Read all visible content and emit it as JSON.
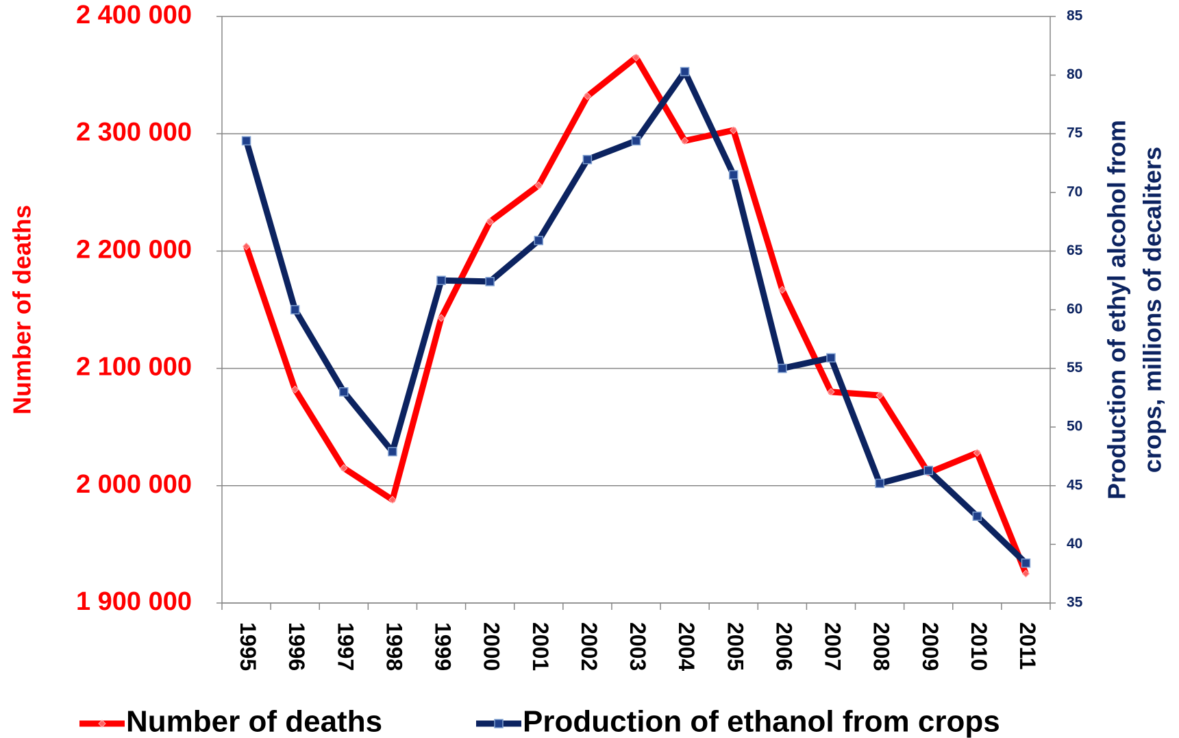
{
  "chart_data": {
    "type": "line",
    "y_label": "Number of deaths",
    "y2_label": [
      "Production of ethyl alcohol from",
      "crops, millions of decaliters"
    ],
    "categories": [
      "1995",
      "1996",
      "1997",
      "1998",
      "1999",
      "2000",
      "2001",
      "2002",
      "2003",
      "2004",
      "2005",
      "2006",
      "2007",
      "2008",
      "2009",
      "2010",
      "2011"
    ],
    "series": [
      {
        "name": "Number of deaths",
        "color": "#ff0000",
        "marker": "diamond",
        "values": [
          2204000,
          2082000,
          2015000,
          1988000,
          2143000,
          2225000,
          2256000,
          2332000,
          2365000,
          2294000,
          2303000,
          2167000,
          2080000,
          2077000,
          2011000,
          2028000,
          1925000
        ]
      },
      {
        "name": "Production of ethanol from crops",
        "color": "#0c2360",
        "marker": "square",
        "axis": "y2",
        "values": [
          74.4,
          60.0,
          53.0,
          47.9,
          62.5,
          62.4,
          65.9,
          72.8,
          74.4,
          80.3,
          71.5,
          55.0,
          55.9,
          45.2,
          46.3,
          42.4,
          38.4
        ]
      }
    ],
    "ylim": [
      1900000,
      2400000
    ],
    "yticks": [
      {
        "value": 1900000,
        "label": "1 900 000"
      },
      {
        "value": 2000000,
        "label": "2 000 000"
      },
      {
        "value": 2100000,
        "label": "2 100 000"
      },
      {
        "value": 2200000,
        "label": "2 200 000"
      },
      {
        "value": 2300000,
        "label": "2 300 000"
      },
      {
        "value": 2400000,
        "label": "2 400 000"
      }
    ],
    "y2lim": [
      35,
      85
    ],
    "y2ticks": [
      35,
      40,
      45,
      50,
      55,
      60,
      65,
      70,
      75,
      80,
      85
    ],
    "grid": true
  }
}
